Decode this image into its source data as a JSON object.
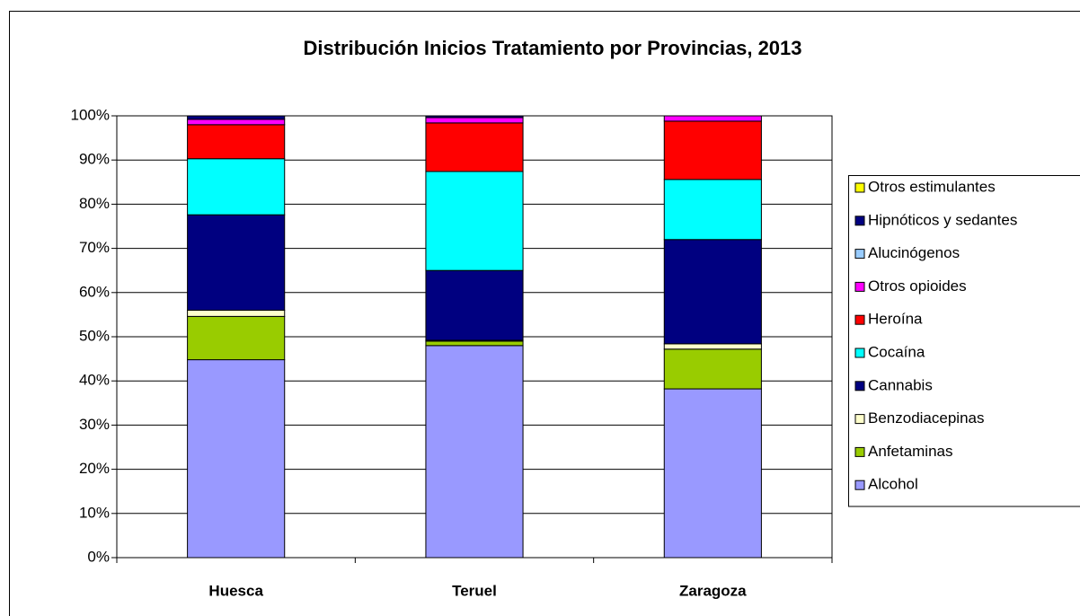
{
  "chart_data": {
    "type": "stacked_bar",
    "title": "Distribución Inicios Tratamiento por Provincias, 2013",
    "categories": [
      "Huesca",
      "Teruel",
      "Zaragoza"
    ],
    "series": [
      {
        "name": "Alcohol",
        "color": "#9999ff",
        "values": [
          44.8,
          48.0,
          38.2
        ]
      },
      {
        "name": "Anfetaminas",
        "color": "#99cc00",
        "values": [
          9.8,
          1.0,
          9.0
        ]
      },
      {
        "name": "Benzodiacepinas",
        "color": "#ffffcc",
        "values": [
          1.4,
          0.2,
          1.2
        ]
      },
      {
        "name": "Cannabis",
        "color": "#000080",
        "values": [
          21.6,
          15.8,
          23.6
        ]
      },
      {
        "name": "Cocaína",
        "color": "#00ffff",
        "values": [
          12.7,
          22.4,
          13.6
        ]
      },
      {
        "name": "Heroína",
        "color": "#ff0000",
        "values": [
          7.7,
          11.0,
          13.2
        ]
      },
      {
        "name": "Otros opioides",
        "color": "#ff00ff",
        "values": [
          1.2,
          1.2,
          1.2
        ]
      },
      {
        "name": "Alucinógenos",
        "color": "#99ccff",
        "values": [
          0,
          0,
          0
        ]
      },
      {
        "name": "Hipnóticos y sedantes",
        "color": "#000080",
        "values": [
          0.8,
          0.4,
          0
        ]
      },
      {
        "name": "Otros estimulantes",
        "color": "#ffff00",
        "values": [
          0,
          0,
          0
        ]
      }
    ],
    "ylim": [
      0,
      100
    ],
    "yticks": [
      {
        "value": 0,
        "label": "0%"
      },
      {
        "value": 10,
        "label": "10%"
      },
      {
        "value": 20,
        "label": "20%"
      },
      {
        "value": 30,
        "label": "30%"
      },
      {
        "value": 40,
        "label": "40%"
      },
      {
        "value": 50,
        "label": "50%"
      },
      {
        "value": 60,
        "label": "60%"
      },
      {
        "value": 70,
        "label": "70%"
      },
      {
        "value": 80,
        "label": "80%"
      },
      {
        "value": 90,
        "label": "90%"
      },
      {
        "value": 100,
        "label": "100%"
      }
    ],
    "grid": true,
    "legend": "right"
  }
}
